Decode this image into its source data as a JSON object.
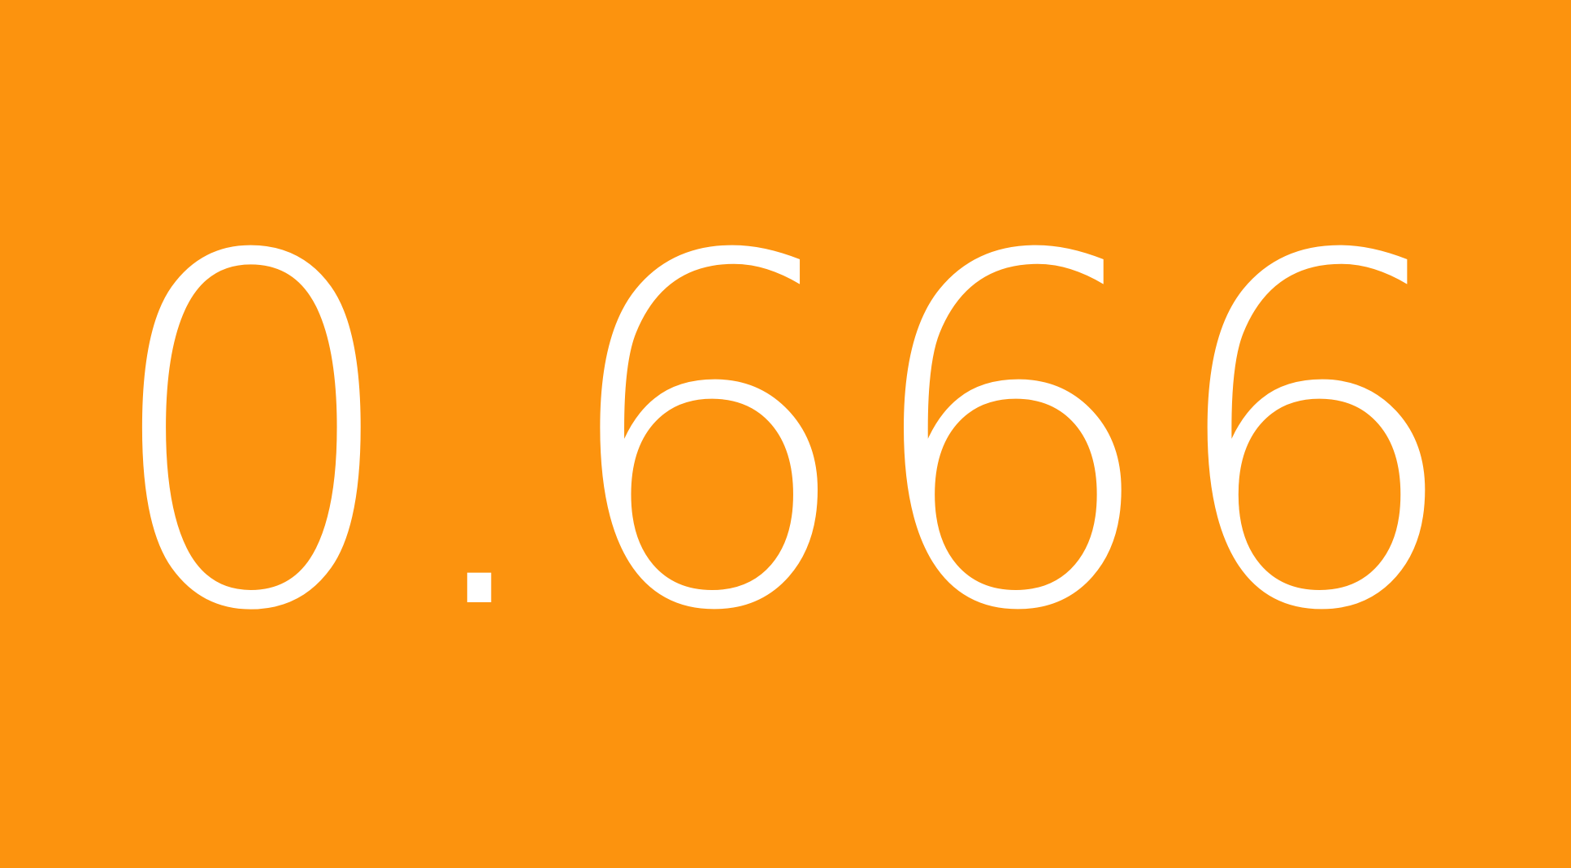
{
  "display": {
    "value": "0.666"
  },
  "colors": {
    "background": "#FC930E",
    "text": "#FFFFFF"
  }
}
